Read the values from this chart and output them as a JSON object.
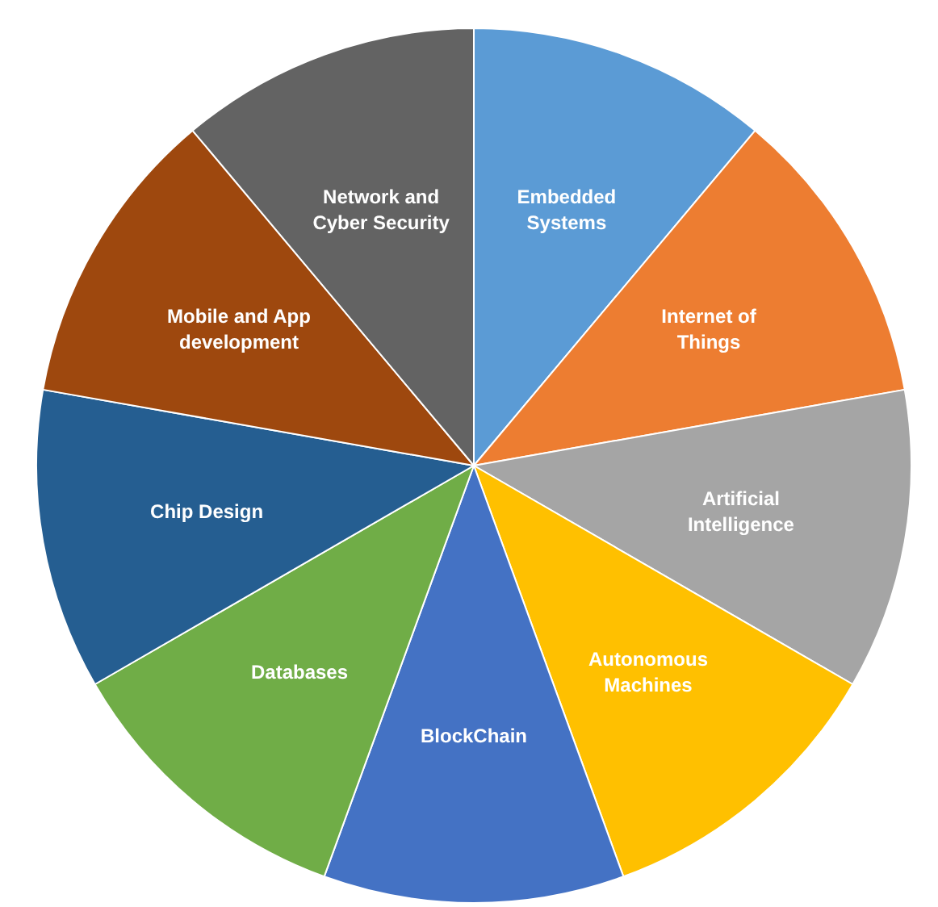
{
  "chart_data": {
    "type": "pie",
    "categories": [
      "Embedded Systems",
      "Internet of Things",
      "Artificial Intelligence",
      "Autonomous Machines",
      "BlockChain",
      "Databases",
      "Chip Design",
      "Mobile and App development",
      "Network and Cyber Security"
    ],
    "values": [
      11.11,
      11.11,
      11.11,
      11.11,
      11.11,
      11.11,
      11.11,
      11.11,
      11.11
    ],
    "colors": [
      "#5b9bd5",
      "#ed7d31",
      "#a5a5a5",
      "#ffc000",
      "#4472c4",
      "#70ad47",
      "#255e91",
      "#9e480e",
      "#636363"
    ],
    "legend": false
  }
}
